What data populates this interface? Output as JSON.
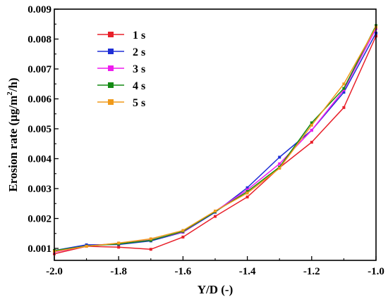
{
  "chart_data": {
    "type": "line",
    "xlabel": "Y/D (-)",
    "ylabel_main": "Erosion rate (μg/m",
    "ylabel_sup": "2",
    "ylabel_tail": "/h)",
    "xlim": [
      -2.0,
      -1.0
    ],
    "ylim": [
      0.0006,
      0.009
    ],
    "x_ticks": [
      -2.0,
      -1.8,
      -1.6,
      -1.4,
      -1.2,
      -1.0
    ],
    "x_tick_labels": [
      "-2.0",
      "-1.8",
      "-1.6",
      "-1.4",
      "-1.2",
      "-1.0"
    ],
    "y_ticks": [
      0.001,
      0.002,
      0.003,
      0.004,
      0.005,
      0.006,
      0.007,
      0.008,
      0.009
    ],
    "y_tick_labels": [
      "0.001",
      "0.002",
      "0.003",
      "0.004",
      "0.005",
      "0.006",
      "0.007",
      "0.008",
      "0.009"
    ],
    "x": [
      -2.0,
      -1.9,
      -1.8,
      -1.7,
      -1.6,
      -1.5,
      -1.4,
      -1.3,
      -1.2,
      -1.1,
      -1.0
    ],
    "legend_position": "top-left",
    "grid": false,
    "series": [
      {
        "name": "1 s",
        "color": "#e8202a",
        "values": [
          0.00082,
          0.00107,
          0.00104,
          0.00097,
          0.00138,
          0.00207,
          0.00272,
          0.0037,
          0.00455,
          0.00571,
          0.0081
        ]
      },
      {
        "name": "2 s",
        "color": "#1f2fd6",
        "values": [
          0.00093,
          0.00112,
          0.00113,
          0.00125,
          0.00154,
          0.00221,
          0.00303,
          0.00405,
          0.00495,
          0.00622,
          0.0082
        ]
      },
      {
        "name": "3 s",
        "color": "#ee1cee",
        "values": [
          0.00088,
          0.00108,
          0.00117,
          0.00128,
          0.00155,
          0.00224,
          0.00296,
          0.00383,
          0.00495,
          0.0063,
          0.00835
        ]
      },
      {
        "name": "4 s",
        "color": "#138a13",
        "values": [
          0.00093,
          0.00108,
          0.00115,
          0.00127,
          0.00157,
          0.00223,
          0.0029,
          0.00372,
          0.0052,
          0.00635,
          0.00845
        ]
      },
      {
        "name": "5 s",
        "color": "#f09a1a",
        "values": [
          0.0009,
          0.00107,
          0.00118,
          0.00132,
          0.0016,
          0.00225,
          0.00285,
          0.00368,
          0.00512,
          0.0065,
          0.0084
        ]
      }
    ]
  }
}
